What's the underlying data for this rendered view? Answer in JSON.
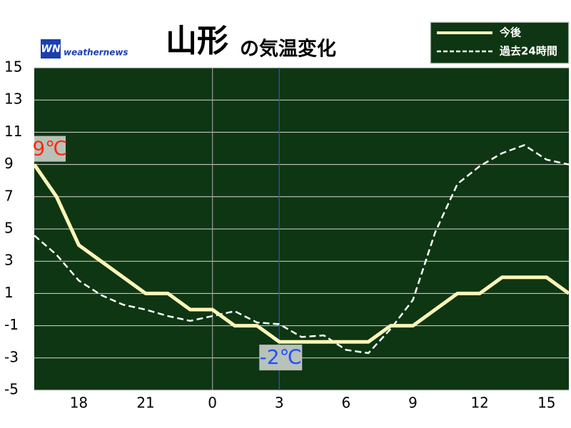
{
  "chart_data": {
    "type": "line",
    "title": "山形",
    "subtitle": "の気温変化",
    "brand": "weathernews",
    "categories": [
      null,
      null,
      "18",
      null,
      null,
      "21",
      null,
      null,
      "0",
      null,
      null,
      "3",
      null,
      null,
      "6",
      null,
      null,
      "9",
      null,
      null,
      "12",
      null,
      null,
      "15",
      null
    ],
    "series": [
      {
        "name": "今後",
        "color": "#fff6b8",
        "dash": false,
        "values": [
          9,
          7,
          4,
          3,
          2,
          1,
          1,
          0,
          0,
          -1,
          -1,
          -2,
          -2,
          -2,
          -2,
          -2,
          -1,
          -1,
          0,
          1,
          1,
          2,
          2,
          2,
          1
        ]
      },
      {
        "name": "過去24時間",
        "color": "#ffffff",
        "dash": true,
        "values": [
          4.6,
          3.4,
          1.8,
          0.9,
          0.3,
          0,
          -0.4,
          -0.7,
          -0.4,
          -0.1,
          -0.8,
          -0.9,
          -1.7,
          -1.6,
          -2.5,
          -2.7,
          -1.2,
          0.6,
          4.8,
          7.8,
          8.9,
          9.7,
          10.2,
          9.3,
          9
        ]
      }
    ],
    "ylim": [
      -5,
      15
    ],
    "yticks": [
      -5,
      -3,
      -1,
      1,
      3,
      5,
      7,
      9,
      11,
      13,
      15
    ],
    "grid": true,
    "vlines": [
      {
        "x": "0",
        "color": "#9a9a9a"
      },
      {
        "x": "3",
        "color": "#2b4fd8"
      }
    ],
    "annotations": [
      {
        "text": "9℃",
        "index": 0,
        "series": 0,
        "color": "#ff2a10"
      },
      {
        "text": "-2℃",
        "index": 11,
        "series": 0,
        "color": "#1f4fff"
      }
    ],
    "legend": "top-right"
  }
}
